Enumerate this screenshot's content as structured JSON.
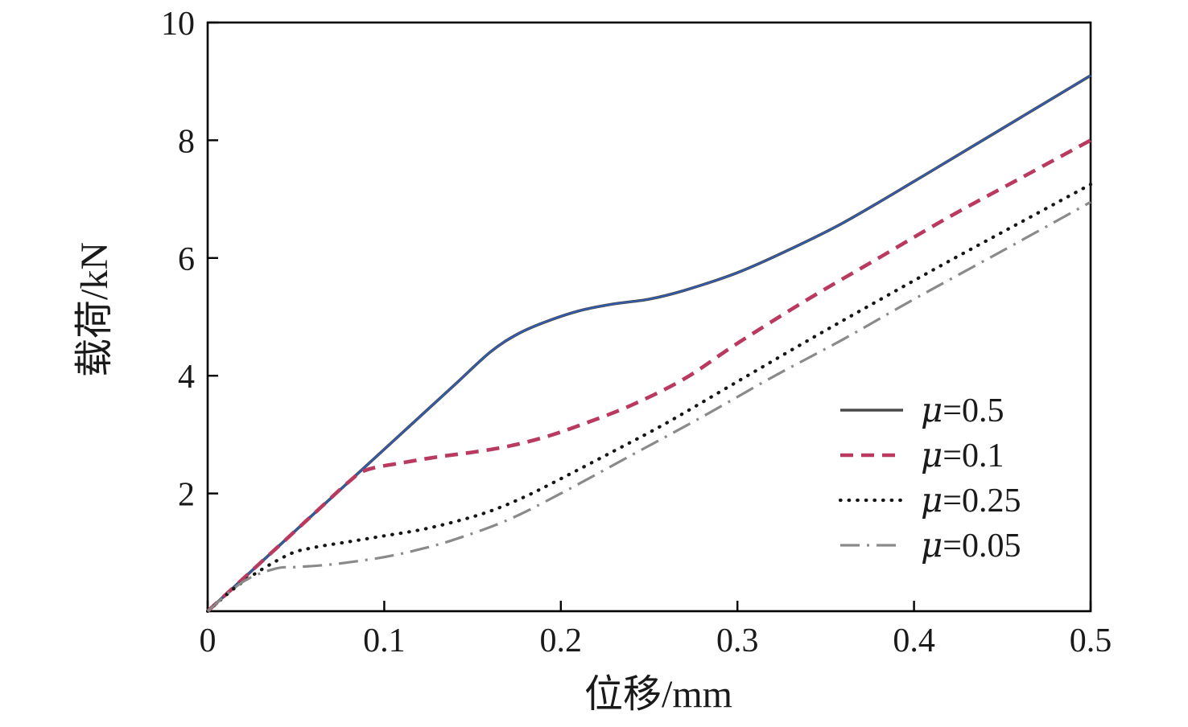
{
  "chart_data": {
    "type": "line",
    "title": "",
    "xlabel": "位移/mm",
    "ylabel": "载荷/kN",
    "xlim": [
      0,
      0.5
    ],
    "ylim": [
      0,
      10
    ],
    "xticks": [
      0,
      0.1,
      0.2,
      0.3,
      0.4,
      0.5
    ],
    "yticks": [
      2,
      4,
      6,
      8,
      10
    ],
    "grid": false,
    "legend_position": "inside-lower-right",
    "frame_color": "#000000",
    "series": [
      {
        "name": "μ=0.5",
        "style": "solid",
        "color": "#4a4a4a",
        "overlay_color": "#2e5cb8",
        "x": [
          0,
          0.02,
          0.04,
          0.06,
          0.08,
          0.1,
          0.12,
          0.14,
          0.16,
          0.175,
          0.19,
          0.21,
          0.23,
          0.25,
          0.27,
          0.3,
          0.33,
          0.36,
          0.4,
          0.45,
          0.5
        ],
        "y": [
          0,
          0.55,
          1.1,
          1.65,
          2.2,
          2.75,
          3.3,
          3.85,
          4.4,
          4.7,
          4.9,
          5.1,
          5.22,
          5.3,
          5.45,
          5.75,
          6.15,
          6.6,
          7.3,
          8.2,
          9.1
        ]
      },
      {
        "name": "μ=0.1",
        "style": "dashed",
        "color": "#b93a5e",
        "x": [
          0,
          0.02,
          0.04,
          0.06,
          0.08,
          0.09,
          0.11,
          0.13,
          0.15,
          0.17,
          0.19,
          0.21,
          0.24,
          0.27,
          0.3,
          0.34,
          0.38,
          0.42,
          0.46,
          0.5
        ],
        "y": [
          0,
          0.55,
          1.1,
          1.65,
          2.2,
          2.4,
          2.52,
          2.62,
          2.7,
          2.8,
          2.95,
          3.15,
          3.5,
          3.95,
          4.55,
          5.3,
          6.0,
          6.7,
          7.35,
          8.0
        ]
      },
      {
        "name": "μ=0.25",
        "style": "dotted",
        "color": "#161616",
        "x": [
          0,
          0.02,
          0.045,
          0.06,
          0.08,
          0.1,
          0.12,
          0.14,
          0.16,
          0.18,
          0.2,
          0.23,
          0.26,
          0.3,
          0.34,
          0.38,
          0.42,
          0.46,
          0.5
        ],
        "y": [
          0,
          0.5,
          0.95,
          1.08,
          1.18,
          1.28,
          1.38,
          1.52,
          1.7,
          1.95,
          2.25,
          2.72,
          3.2,
          3.9,
          4.6,
          5.28,
          5.95,
          6.6,
          7.25
        ]
      },
      {
        "name": "μ=0.05",
        "style": "dashdot",
        "color": "#8a8a8a",
        "x": [
          0,
          0.02,
          0.038,
          0.05,
          0.065,
          0.08,
          0.1,
          0.12,
          0.14,
          0.17,
          0.2,
          0.24,
          0.28,
          0.32,
          0.36,
          0.4,
          0.45,
          0.5
        ],
        "y": [
          0,
          0.5,
          0.72,
          0.75,
          0.78,
          0.83,
          0.92,
          1.05,
          1.22,
          1.55,
          2.0,
          2.65,
          3.3,
          3.98,
          4.62,
          5.3,
          6.12,
          6.95
        ]
      }
    ]
  }
}
